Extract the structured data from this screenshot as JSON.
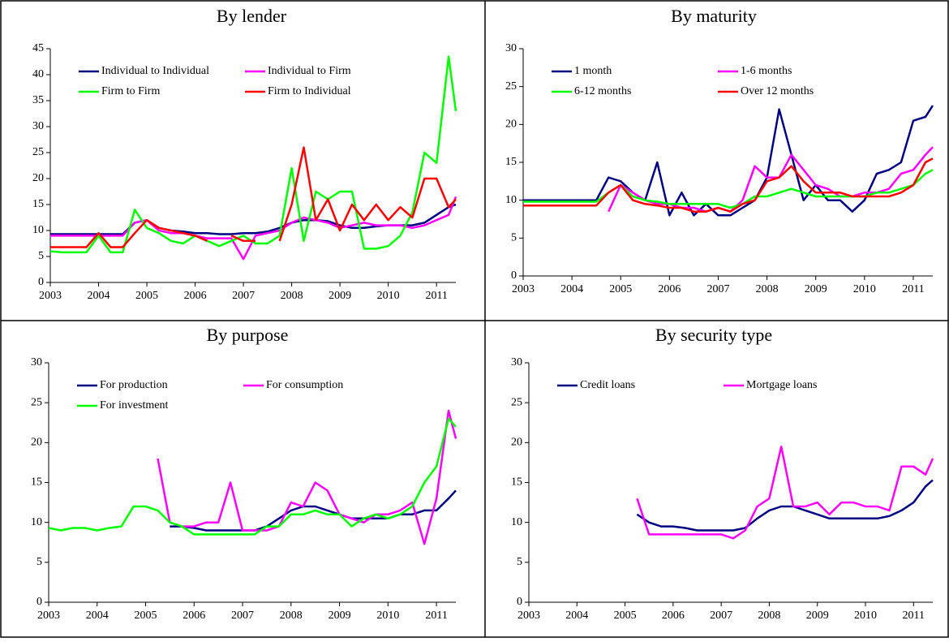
{
  "chart_data": [
    {
      "type": "line",
      "title": "By lender",
      "legend": "upper left",
      "grid": false,
      "xlim": [
        2003,
        2011.4
      ],
      "xticks": [
        2003,
        2004,
        2005,
        2006,
        2007,
        2008,
        2009,
        2010,
        2011
      ],
      "ylim": [
        0,
        45
      ],
      "yticks": [
        0,
        5,
        10,
        15,
        20,
        25,
        30,
        35,
        40,
        45
      ],
      "x": [
        2003,
        2003.25,
        2003.5,
        2003.75,
        2004,
        2004.25,
        2004.5,
        2004.75,
        2005,
        2005.25,
        2005.5,
        2005.75,
        2006,
        2006.25,
        2006.5,
        2006.75,
        2007,
        2007.25,
        2007.5,
        2007.75,
        2008,
        2008.25,
        2008.5,
        2008.75,
        2009,
        2009.25,
        2009.5,
        2009.75,
        2010,
        2010.25,
        2010.5,
        2010.75,
        2011,
        2011.25,
        2011.4
      ],
      "series": [
        {
          "name": "Individual to Individual",
          "color": "#000080",
          "values": [
            9.3,
            9.3,
            9.3,
            9.3,
            9.3,
            9.3,
            9.3,
            11.5,
            12,
            10.5,
            10,
            9.8,
            9.5,
            9.5,
            9.3,
            9.3,
            9.5,
            9.5,
            9.8,
            10.5,
            11.5,
            12,
            12,
            11.8,
            11,
            10.5,
            10.5,
            10.8,
            11,
            11,
            11,
            11.5,
            13,
            14.5,
            15
          ]
        },
        {
          "name": "Individual to Firm",
          "color": "#ff00ff",
          "values": [
            9,
            9,
            9,
            9,
            9,
            9,
            9,
            11.5,
            12,
            10,
            9.5,
            9.5,
            9,
            8.5,
            8.5,
            8.5,
            4.5,
            9,
            9.5,
            10,
            11.5,
            12.5,
            12,
            11.5,
            10.5,
            11,
            11.5,
            11,
            11,
            11,
            10.5,
            11,
            12,
            13,
            16.5
          ]
        },
        {
          "name": "Firm to Firm",
          "color": "#00ff00",
          "values": [
            6,
            5.8,
            5.8,
            5.8,
            9,
            5.8,
            5.8,
            14,
            10.5,
            9.5,
            8,
            7.5,
            9,
            8,
            7,
            8,
            9,
            7.5,
            7.5,
            9,
            22,
            8,
            17.5,
            16,
            17.5,
            17.5,
            6.5,
            6.5,
            7,
            9,
            13.5,
            25,
            23,
            43.5,
            33
          ]
        },
        {
          "name": "Firm to Individual",
          "color": "#ff0000",
          "values": [
            6.8,
            6.8,
            6.8,
            6.8,
            9.5,
            6.8,
            6.8,
            9.5,
            12,
            10.5,
            10,
            9.5,
            9,
            8,
            null,
            9,
            8,
            8,
            null,
            8,
            15,
            26,
            12,
            16,
            10,
            15,
            12,
            15,
            12,
            14.5,
            12.5,
            20,
            20,
            14.5,
            16
          ]
        }
      ]
    },
    {
      "type": "line",
      "title": "By maturity",
      "legend": "upper left",
      "grid": false,
      "xlim": [
        2003,
        2011.4
      ],
      "xticks": [
        2003,
        2004,
        2005,
        2006,
        2007,
        2008,
        2009,
        2010,
        2011
      ],
      "ylim": [
        0,
        30
      ],
      "yticks": [
        0,
        5,
        10,
        15,
        20,
        25,
        30
      ],
      "x": [
        2003,
        2003.25,
        2003.5,
        2003.75,
        2004,
        2004.25,
        2004.5,
        2004.75,
        2005,
        2005.25,
        2005.5,
        2005.75,
        2006,
        2006.25,
        2006.5,
        2006.75,
        2007,
        2007.25,
        2007.5,
        2007.75,
        2008,
        2008.25,
        2008.5,
        2008.75,
        2009,
        2009.25,
        2009.5,
        2009.75,
        2010,
        2010.25,
        2010.5,
        2010.75,
        2011,
        2011.25,
        2011.4
      ],
      "series": [
        {
          "name": "1 month",
          "color": "#000080",
          "values": [
            10,
            10,
            10,
            10,
            10,
            10,
            10,
            13,
            12.5,
            11,
            10,
            15,
            8,
            11,
            8,
            9.5,
            8,
            8,
            9,
            10,
            13,
            22,
            16,
            10,
            12,
            10,
            10,
            8.5,
            10,
            13.5,
            14,
            15,
            20.5,
            21,
            22.5
          ]
        },
        {
          "name": "1-6 months",
          "color": "#ff00ff",
          "values": [
            null,
            null,
            null,
            null,
            10.5,
            null,
            null,
            8.5,
            12,
            11,
            10,
            9.5,
            9.5,
            9,
            9,
            8.5,
            9,
            8.5,
            10,
            14.5,
            13,
            13,
            16,
            14,
            12,
            11.5,
            10.5,
            10.5,
            11,
            11,
            11.5,
            13.5,
            14,
            16,
            17
          ]
        },
        {
          "name": "6-12 months",
          "color": "#00ff00",
          "values": [
            9.8,
            9.8,
            9.8,
            9.8,
            9.8,
            9.8,
            9.8,
            11,
            12,
            10.5,
            10,
            9.8,
            9.5,
            9.5,
            9.5,
            9.5,
            9.5,
            9,
            9.5,
            10.5,
            10.5,
            11,
            11.5,
            11,
            10.5,
            10.5,
            10.5,
            10.5,
            10.5,
            11,
            11,
            11.5,
            12,
            13.5,
            14
          ]
        },
        {
          "name": "Over 12 months",
          "color": "#ff0000",
          "values": [
            9.3,
            9.3,
            9.3,
            9.3,
            9.3,
            9.3,
            9.3,
            11,
            12,
            10,
            9.5,
            9.3,
            9,
            9,
            8.5,
            8.5,
            9,
            8.5,
            9.5,
            10,
            12.5,
            13,
            14.5,
            12.5,
            11,
            11,
            11,
            10.5,
            10.5,
            10.5,
            10.5,
            11,
            12,
            15,
            15.5
          ]
        }
      ]
    },
    {
      "type": "line",
      "title": "By purpose",
      "legend": "upper left",
      "grid": false,
      "xlim": [
        2003,
        2011.4
      ],
      "xticks": [
        2003,
        2004,
        2005,
        2006,
        2007,
        2008,
        2009,
        2010,
        2011
      ],
      "ylim": [
        0,
        30
      ],
      "yticks": [
        0,
        5,
        10,
        15,
        20,
        25,
        30
      ],
      "x": [
        2003,
        2003.25,
        2003.5,
        2003.75,
        2004,
        2004.25,
        2004.5,
        2004.75,
        2005,
        2005.25,
        2005.5,
        2005.75,
        2006,
        2006.25,
        2006.5,
        2006.75,
        2007,
        2007.25,
        2007.5,
        2007.75,
        2008,
        2008.25,
        2008.5,
        2008.75,
        2009,
        2009.25,
        2009.5,
        2009.75,
        2010,
        2010.25,
        2010.5,
        2010.75,
        2011,
        2011.25,
        2011.4
      ],
      "series": [
        {
          "name": "For production",
          "color": "#000080",
          "values": [
            null,
            null,
            null,
            null,
            null,
            null,
            null,
            null,
            null,
            null,
            9.5,
            9.5,
            9.3,
            9,
            9,
            9,
            9,
            9,
            9.5,
            10.5,
            11.5,
            12,
            12,
            11.5,
            11,
            10.5,
            10.5,
            10.5,
            10.5,
            11,
            11,
            11.5,
            11.5,
            13,
            14
          ]
        },
        {
          "name": "For consumption",
          "color": "#ff00ff",
          "values": [
            null,
            null,
            null,
            null,
            null,
            null,
            null,
            null,
            null,
            18,
            10,
            9.5,
            9.5,
            10,
            10,
            15,
            9,
            9,
            9,
            9.5,
            12.5,
            12,
            15,
            14,
            11,
            10.5,
            10,
            11,
            11,
            11.5,
            12.5,
            7.3,
            13,
            24,
            20.5
          ]
        },
        {
          "name": "For investment",
          "color": "#00ff00",
          "values": [
            9.3,
            9,
            9.3,
            9.3,
            9,
            9.3,
            9.5,
            12,
            12,
            11.5,
            10,
            9.5,
            8.5,
            8.5,
            8.5,
            8.5,
            8.5,
            8.5,
            9.5,
            9.5,
            11,
            11,
            11.5,
            11,
            11,
            9.5,
            10.5,
            11,
            10.5,
            11,
            12,
            15,
            17,
            23,
            22
          ]
        }
      ]
    },
    {
      "type": "line",
      "title": "By security type",
      "legend": "upper left",
      "grid": false,
      "xlim": [
        2003,
        2011.4
      ],
      "xticks": [
        2003,
        2004,
        2005,
        2006,
        2007,
        2008,
        2009,
        2010,
        2011
      ],
      "ylim": [
        0,
        30
      ],
      "yticks": [
        0,
        5,
        10,
        15,
        20,
        25,
        30
      ],
      "x": [
        2003,
        2003.25,
        2003.5,
        2003.75,
        2004,
        2004.25,
        2004.5,
        2004.75,
        2005,
        2005.25,
        2005.5,
        2005.75,
        2006,
        2006.25,
        2006.5,
        2006.75,
        2007,
        2007.25,
        2007.5,
        2007.75,
        2008,
        2008.25,
        2008.5,
        2008.75,
        2009,
        2009.25,
        2009.5,
        2009.75,
        2010,
        2010.25,
        2010.5,
        2010.75,
        2011,
        2011.25,
        2011.4
      ],
      "series": [
        {
          "name": "Credit loans",
          "color": "#000080",
          "values": [
            null,
            null,
            null,
            null,
            null,
            null,
            null,
            null,
            null,
            11,
            10,
            9.5,
            9.5,
            9.3,
            9,
            9,
            9,
            9,
            9.3,
            10.5,
            11.5,
            12,
            12,
            11.5,
            11,
            10.5,
            10.5,
            10.5,
            10.5,
            10.5,
            10.8,
            11.5,
            12.5,
            14.5,
            15.3
          ]
        },
        {
          "name": "Mortgage loans",
          "color": "#ff00ff",
          "values": [
            null,
            null,
            null,
            null,
            null,
            null,
            null,
            null,
            null,
            13,
            8.5,
            8.5,
            8.5,
            8.5,
            8.5,
            8.5,
            8.5,
            8,
            9,
            12,
            13,
            19.5,
            12,
            12,
            12.5,
            11,
            12.5,
            12.5,
            12,
            12,
            11.5,
            17,
            17,
            16,
            18
          ]
        }
      ]
    }
  ]
}
